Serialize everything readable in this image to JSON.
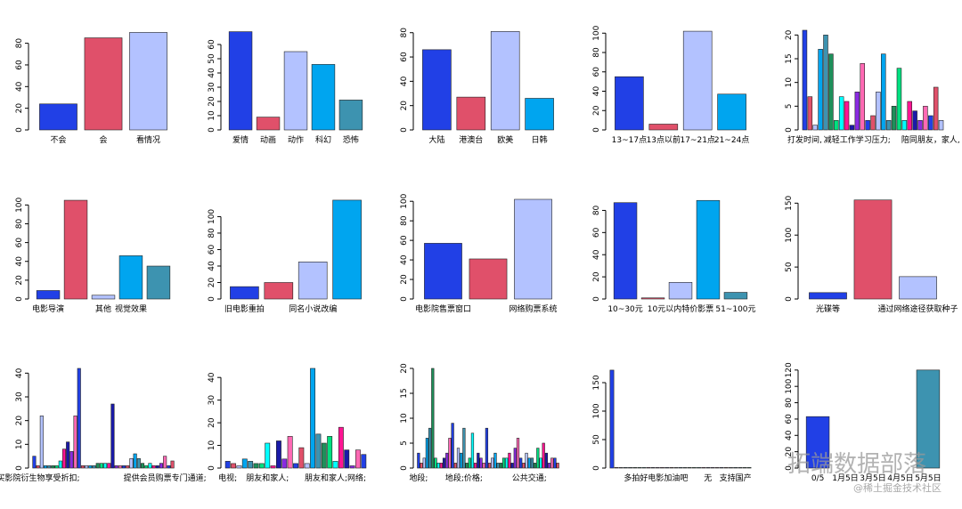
{
  "chart_data": [
    {
      "type": "bar",
      "categories": [
        "不会",
        "会",
        "看情况"
      ],
      "values": [
        24,
        85,
        90
      ],
      "colors": [
        "#2140e6",
        "#e0506a",
        "#b3c2ff"
      ],
      "ylim": [
        0,
        92
      ],
      "yticks": [
        0,
        20,
        40,
        60,
        80
      ]
    },
    {
      "type": "bar",
      "categories": [
        "爱情",
        "动画",
        "动作",
        "科幻",
        "恐怖"
      ],
      "values": [
        69,
        9,
        55,
        46,
        21
      ],
      "colors": [
        "#2140e6",
        "#e0506a",
        "#b3c2ff",
        "#00a5ef",
        "#3d93b0"
      ],
      "ylim": [
        0,
        70
      ],
      "yticks": [
        0,
        10,
        20,
        30,
        40,
        50,
        60
      ]
    },
    {
      "type": "bar",
      "categories": [
        "大陆",
        "港澳台",
        "欧美",
        "日韩"
      ],
      "values": [
        66,
        27,
        81,
        26
      ],
      "colors": [
        "#2140e6",
        "#e0506a",
        "#b3c2ff",
        "#00a5ef"
      ],
      "ylim": [
        0,
        82
      ],
      "yticks": [
        0,
        20,
        40,
        60,
        80
      ]
    },
    {
      "type": "bar",
      "categories": [
        "13~17点",
        "13点以前",
        "17~21点",
        "21~24点"
      ],
      "values": [
        55,
        6,
        102,
        37
      ],
      "colors": [
        "#2140e6",
        "#e0506a",
        "#b3c2ff",
        "#00a5ef"
      ],
      "ylim": [
        0,
        103
      ],
      "yticks": [
        0,
        20,
        40,
        60,
        80,
        100
      ]
    },
    {
      "type": "bar",
      "categories": [
        "打发时间,",
        null,
        null,
        null,
        null,
        null,
        null,
        null,
        null,
        null,
        "减轻工作学习压力;",
        null,
        null,
        null,
        null,
        null,
        null,
        null,
        null,
        null,
        null,
        null,
        null,
        null,
        "陪同朋友，家人,",
        null,
        null
      ],
      "values": [
        21,
        7,
        1,
        17,
        20,
        16,
        2,
        7,
        6,
        1,
        8,
        14,
        2,
        3,
        8,
        16,
        2,
        5,
        13,
        2,
        6,
        4,
        2,
        5,
        3,
        9,
        2
      ],
      "colors": [
        "#2140e6",
        "#e0506a",
        "#b3c2ff",
        "#00a5ef",
        "#3d93b0",
        "#1e8f5a",
        "#00e080",
        "#00ffff",
        "#ff1493",
        "#1a1aa8",
        "#8a2be2",
        "#ff69b4"
      ],
      "ylim": [
        0,
        21
      ],
      "yticks": [
        0,
        5,
        10,
        15,
        20
      ]
    },
    {
      "type": "bar",
      "categories": [
        "电影导演",
        null,
        "其他",
        "视觉效果",
        null
      ],
      "values": [
        9,
        105,
        4,
        46,
        35
      ],
      "colors": [
        "#2140e6",
        "#e0506a",
        "#b3c2ff",
        "#00a5ef",
        "#3d93b0"
      ],
      "ylim": [
        0,
        106
      ],
      "yticks": [
        0,
        20,
        40,
        60,
        80,
        100
      ]
    },
    {
      "type": "bar",
      "categories": [
        "旧电影重拍",
        null,
        "同名小说改编",
        null
      ],
      "values": [
        15,
        20,
        45,
        120
      ],
      "colors": [
        "#2140e6",
        "#e0506a",
        "#b3c2ff",
        "#00a5ef"
      ],
      "ylim": [
        0,
        121
      ],
      "yticks": [
        0,
        20,
        40,
        60,
        80,
        100
      ]
    },
    {
      "type": "bar",
      "categories": [
        "电影院售票窗口",
        null,
        "网络购票系统"
      ],
      "values": [
        57,
        41,
        102
      ],
      "colors": [
        "#2140e6",
        "#e0506a",
        "#b3c2ff"
      ],
      "ylim": [
        0,
        102
      ],
      "yticks": [
        0,
        20,
        40,
        60,
        80,
        100
      ]
    },
    {
      "type": "bar",
      "categories": [
        "10~30元",
        null,
        "10元以内特价影票",
        null,
        "51~100元"
      ],
      "values": [
        87,
        1,
        15,
        89,
        6
      ],
      "colors": [
        "#2140e6",
        "#e0506a",
        "#b3c2ff",
        "#00a5ef",
        "#3d93b0"
      ],
      "ylim": [
        0,
        90
      ],
      "yticks": [
        0,
        20,
        40,
        60,
        80
      ]
    },
    {
      "type": "bar",
      "categories": [
        "光碟等",
        null,
        "通过网络途径获取种子"
      ],
      "values": [
        10,
        155,
        35
      ],
      "colors": [
        "#2140e6",
        "#e0506a",
        "#b3c2ff"
      ],
      "ylim": [
        0,
        156
      ],
      "yticks": [
        0,
        50,
        100,
        150
      ]
    },
    {
      "type": "bar",
      "categories": [
        "购买影院衍生物享受折扣;",
        null,
        null,
        null,
        null,
        null,
        null,
        null,
        null,
        null,
        null,
        null,
        null,
        null,
        null,
        null,
        null,
        null,
        null,
        null,
        null,
        null,
        null,
        null,
        null,
        null,
        null,
        null,
        null,
        null,
        null,
        null,
        null,
        null,
        null,
        "提供会员购票专门通道;",
        null,
        null
      ],
      "values": [
        5,
        1,
        22,
        1,
        1,
        1,
        1,
        3,
        8,
        11,
        7,
        22,
        42,
        1,
        1,
        1,
        1,
        2,
        2,
        2,
        2,
        27,
        1,
        1,
        1,
        1,
        4,
        6,
        4,
        2,
        1,
        2,
        1,
        1,
        2,
        5,
        1,
        3
      ],
      "colors": [
        "#2140e6",
        "#e0506a",
        "#b3c2ff",
        "#00a5ef",
        "#3d93b0",
        "#1e8f5a",
        "#00e080",
        "#00ffff",
        "#ff1493",
        "#1a1aa8",
        "#8a2be2",
        "#ff69b4"
      ],
      "ylim": [
        0,
        42
      ],
      "yticks": [
        0,
        10,
        20,
        30,
        40
      ]
    },
    {
      "type": "bar",
      "categories": [
        "电视;",
        null,
        null,
        null,
        null,
        null,
        null,
        "朋友和家人;",
        null,
        null,
        null,
        null,
        null,
        null,
        null,
        null,
        null,
        null,
        null,
        "朋友和家人;网络;",
        null,
        null,
        null,
        null,
        null
      ],
      "values": [
        3,
        2,
        1,
        4,
        3,
        2,
        2,
        11,
        1,
        12,
        4,
        14,
        2,
        9,
        2,
        44,
        15,
        11,
        14,
        3,
        18,
        8,
        1,
        8,
        6
      ],
      "colors": [
        "#2140e6",
        "#e0506a",
        "#b3c2ff",
        "#00a5ef",
        "#3d93b0",
        "#1e8f5a",
        "#00e080",
        "#00ffff",
        "#ff1493",
        "#1a1aa8",
        "#8a2be2",
        "#ff69b4"
      ],
      "ylim": [
        0,
        44
      ],
      "yticks": [
        0,
        10,
        20,
        30,
        40
      ]
    },
    {
      "type": "bar",
      "categories": [
        "地段;",
        null,
        null,
        null,
        null,
        null,
        null,
        null,
        null,
        null,
        null,
        null,
        null,
        null,
        null,
        null,
        "地段;价格;",
        null,
        null,
        null,
        null,
        null,
        null,
        null,
        null,
        null,
        null,
        null,
        null,
        null,
        null,
        null,
        null,
        null,
        null,
        null,
        null,
        null,
        null,
        "公共交通;",
        null,
        null,
        null,
        null,
        null,
        null,
        null,
        null,
        null,
        null
      ],
      "values": [
        3,
        1,
        2,
        6,
        8,
        20,
        2,
        1,
        1,
        2,
        3,
        6,
        9,
        1,
        4,
        3,
        8,
        1,
        2,
        7,
        1,
        3,
        2,
        1,
        8,
        1,
        2,
        3,
        1,
        1,
        2,
        2,
        3,
        1,
        4,
        6,
        2,
        1,
        3,
        2,
        2,
        1,
        4,
        2,
        5,
        3,
        1,
        2,
        2,
        1
      ],
      "colors": [
        "#2140e6",
        "#e0506a",
        "#b3c2ff",
        "#00a5ef",
        "#3d93b0",
        "#1e8f5a",
        "#00e080",
        "#00ffff",
        "#ff1493",
        "#1a1aa8",
        "#8a2be2",
        "#ff69b4"
      ],
      "ylim": [
        0,
        20
      ],
      "yticks": [
        0,
        5,
        10,
        15,
        20
      ]
    },
    {
      "type": "bar",
      "categories": [
        null,
        null,
        null,
        null,
        null,
        null,
        null,
        "多拍好电影",
        null,
        null,
        null,
        null,
        null,
        null,
        "加油吧",
        null,
        null,
        null,
        null,
        null,
        null,
        "无",
        null,
        null,
        null,
        null,
        null,
        "支持国产",
        null,
        null,
        null
      ],
      "values": [
        172,
        1,
        1,
        1,
        1,
        1,
        1,
        1,
        1,
        1,
        1,
        1,
        1,
        1,
        1,
        1,
        1,
        1,
        1,
        1,
        1,
        1,
        1,
        1,
        1,
        1,
        1,
        1,
        1,
        1,
        1
      ],
      "colors": [
        "#2140e6",
        "#e0506a",
        "#b3c2ff",
        "#00a5ef",
        "#3d93b0",
        "#1e8f5a",
        "#00e080",
        "#00ffff",
        "#ff1493",
        "#1a1aa8",
        "#8a2be2",
        "#ff69b4"
      ],
      "ylim": [
        0,
        175
      ],
      "yticks": [
        0,
        50,
        100,
        150
      ]
    },
    {
      "type": "bar",
      "categories": [
        "0/5",
        "1月5日",
        "3月5日",
        "4月5日",
        "5月5日"
      ],
      "values": [
        63,
        0,
        0,
        0,
        120
      ],
      "colors": [
        "#2140e6",
        "#e0506a",
        "#b3c2ff",
        "#00a5ef",
        "#3d93b0"
      ],
      "ylim": [
        0,
        122
      ],
      "yticks": [
        0,
        20,
        40,
        60,
        80,
        100,
        120
      ]
    }
  ],
  "watermark": {
    "text": "拓端数据部落",
    "credit": "@稀土掘金技术社区"
  }
}
